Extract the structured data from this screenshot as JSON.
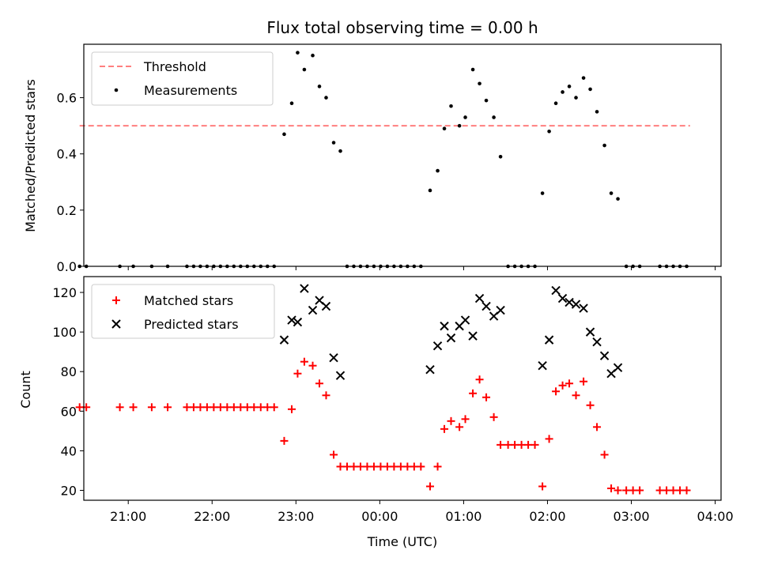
{
  "chart_data": [
    {
      "type": "scatter",
      "title": "Flux total observing time = 0.00 h",
      "ylabel": "Matched/Predicted stars",
      "ylim": [
        0,
        0.79
      ],
      "yticks": [
        "0.0",
        "0.2",
        "0.4",
        "0.6"
      ],
      "ytick_values": [
        0,
        0.2,
        0.4,
        0.6
      ],
      "xlim": [
        20.47,
        28.07
      ],
      "xticks": [
        21,
        22,
        23,
        24,
        25,
        26,
        27,
        28
      ],
      "grid": false,
      "legend": "upper-left",
      "threshold": {
        "name": "Threshold",
        "value": 0.5,
        "x_from": 20.42,
        "x_to": 27.7,
        "color": "#ff7f7f"
      },
      "series": [
        {
          "name": "Measurements",
          "color": "#000000",
          "marker": "dot",
          "x": [
            20.42,
            20.5,
            20.9,
            21.06,
            21.28,
            21.47,
            21.7,
            21.78,
            21.86,
            21.94,
            22.02,
            22.1,
            22.18,
            22.26,
            22.34,
            22.42,
            22.5,
            22.58,
            22.66,
            22.74,
            22.86,
            22.95,
            23.02,
            23.1,
            23.2,
            23.28,
            23.36,
            23.45,
            23.53,
            23.61,
            23.69,
            23.77,
            23.85,
            23.93,
            24.01,
            24.09,
            24.17,
            24.25,
            24.33,
            24.41,
            24.49,
            24.6,
            24.69,
            24.77,
            24.85,
            24.95,
            25.02,
            25.11,
            25.19,
            25.27,
            25.36,
            25.44,
            25.53,
            25.61,
            25.69,
            25.77,
            25.85,
            25.94,
            26.02,
            26.1,
            26.18,
            26.26,
            26.34,
            26.43,
            26.51,
            26.59,
            26.68,
            26.76,
            26.84,
            26.94,
            27.02,
            27.1,
            27.34,
            27.42,
            27.5,
            27.58,
            27.66
          ],
          "y": [
            0,
            0,
            0,
            0,
            0,
            0,
            0,
            0,
            0,
            0,
            0,
            0,
            0,
            0,
            0,
            0,
            0,
            0,
            0,
            0,
            0.47,
            0.58,
            0.76,
            0.7,
            0.75,
            0.64,
            0.6,
            0.44,
            0.41,
            0,
            0,
            0,
            0,
            0,
            0,
            0,
            0,
            0,
            0,
            0,
            0,
            0.27,
            0.34,
            0.49,
            0.57,
            0.5,
            0.53,
            0.7,
            0.65,
            0.59,
            0.53,
            0.39,
            0,
            0,
            0,
            0,
            0,
            0.26,
            0.48,
            0.58,
            0.62,
            0.64,
            0.6,
            0.67,
            0.63,
            0.55,
            0.43,
            0.26,
            0.24,
            0,
            0,
            0,
            0,
            0,
            0,
            0,
            0
          ]
        }
      ]
    },
    {
      "type": "scatter",
      "title": "",
      "xlabel": "Time (UTC)",
      "ylabel": "Count",
      "ylim": [
        15,
        128
      ],
      "yticks": [
        "20",
        "40",
        "60",
        "80",
        "100",
        "120"
      ],
      "ytick_values": [
        20,
        40,
        60,
        80,
        100,
        120
      ],
      "xlim": [
        20.47,
        28.07
      ],
      "xticks": [
        21,
        22,
        23,
        24,
        25,
        26,
        27,
        28
      ],
      "xtick_labels": [
        "21:00",
        "22:00",
        "23:00",
        "00:00",
        "01:00",
        "02:00",
        "03:00",
        "04:00"
      ],
      "grid": false,
      "legend": "upper-left",
      "series": [
        {
          "name": "Matched stars",
          "color": "#ff0000",
          "marker": "plus",
          "x": [
            20.42,
            20.5,
            20.9,
            21.06,
            21.28,
            21.47,
            21.7,
            21.78,
            21.86,
            21.94,
            22.02,
            22.1,
            22.18,
            22.26,
            22.34,
            22.42,
            22.5,
            22.58,
            22.66,
            22.74,
            22.86,
            22.95,
            23.02,
            23.1,
            23.2,
            23.28,
            23.36,
            23.45,
            23.53,
            23.61,
            23.69,
            23.77,
            23.85,
            23.93,
            24.01,
            24.09,
            24.17,
            24.25,
            24.33,
            24.41,
            24.49,
            24.6,
            24.69,
            24.77,
            24.85,
            24.95,
            25.02,
            25.11,
            25.19,
            25.27,
            25.36,
            25.44,
            25.53,
            25.61,
            25.69,
            25.77,
            25.85,
            25.94,
            26.02,
            26.1,
            26.18,
            26.26,
            26.34,
            26.43,
            26.51,
            26.59,
            26.68,
            26.76,
            26.84,
            26.94,
            27.02,
            27.1,
            27.34,
            27.42,
            27.5,
            27.58,
            27.66
          ],
          "y": [
            62,
            62,
            62,
            62,
            62,
            62,
            62,
            62,
            62,
            62,
            62,
            62,
            62,
            62,
            62,
            62,
            62,
            62,
            62,
            62,
            45,
            61,
            79,
            85,
            83,
            74,
            68,
            38,
            32,
            32,
            32,
            32,
            32,
            32,
            32,
            32,
            32,
            32,
            32,
            32,
            32,
            22,
            32,
            51,
            55,
            52,
            56,
            69,
            76,
            67,
            57,
            43,
            43,
            43,
            43,
            43,
            43,
            22,
            46,
            70,
            73,
            74,
            68,
            75,
            63,
            52,
            38,
            21,
            20,
            20,
            20,
            20,
            20,
            20,
            20,
            20,
            20
          ]
        },
        {
          "name": "Predicted stars",
          "color": "#000000",
          "marker": "cross",
          "x": [
            22.86,
            22.95,
            23.02,
            23.1,
            23.2,
            23.28,
            23.36,
            23.45,
            23.53,
            24.6,
            24.69,
            24.77,
            24.85,
            24.95,
            25.02,
            25.11,
            25.19,
            25.27,
            25.36,
            25.44,
            25.94,
            26.02,
            26.1,
            26.18,
            26.26,
            26.34,
            26.43,
            26.51,
            26.59,
            26.68,
            26.76,
            26.84
          ],
          "y": [
            96,
            106,
            105,
            122,
            111,
            116,
            113,
            87,
            78,
            81,
            93,
            103,
            97,
            103,
            106,
            98,
            117,
            113,
            108,
            111,
            83,
            96,
            121,
            117,
            115,
            114,
            112,
            100,
            95,
            88,
            79,
            82
          ]
        }
      ]
    }
  ]
}
